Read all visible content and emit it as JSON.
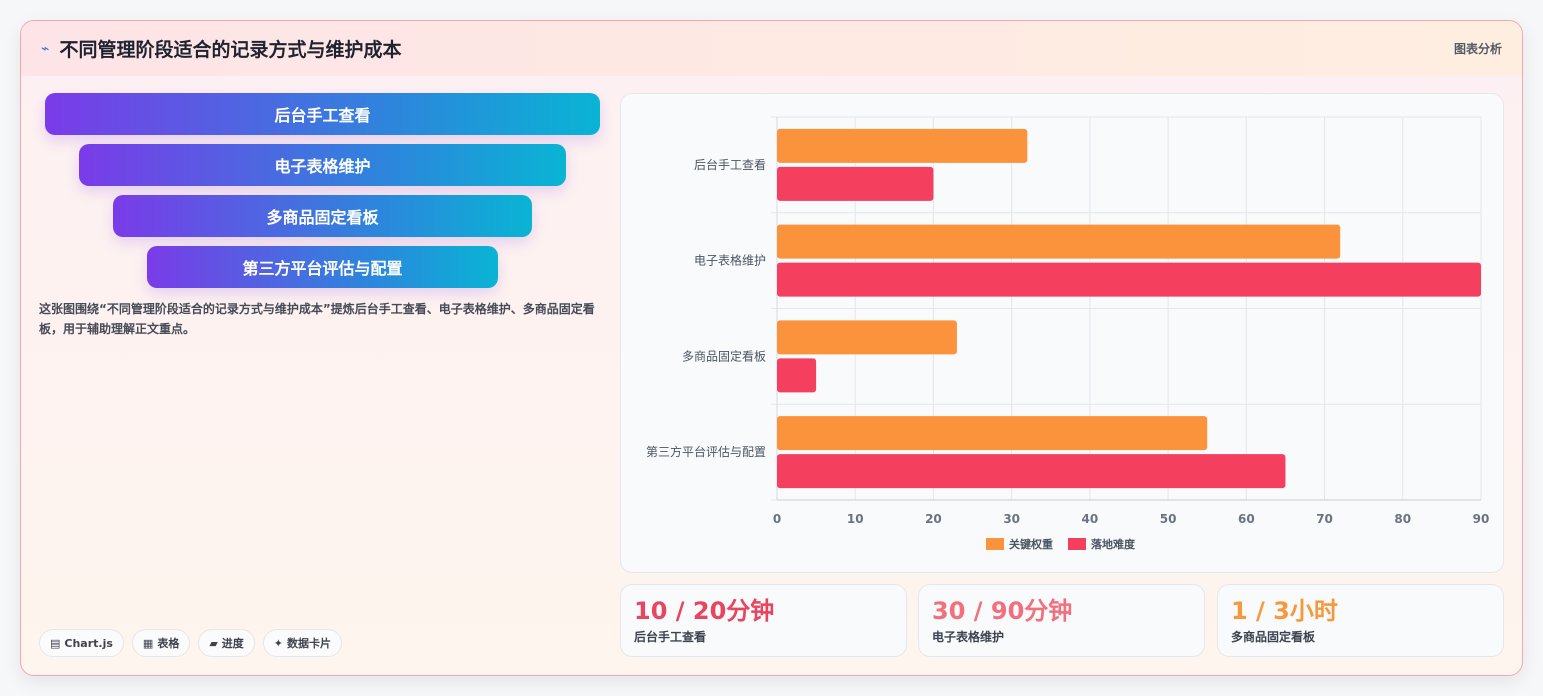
{
  "header": {
    "icon": "spark-icon",
    "title": "不同管理阶段适合的记录方式与维护成本",
    "tag": "图表分析"
  },
  "funnel": {
    "steps": [
      "后台手工查看",
      "电子表格维护",
      "多商品固定看板",
      "第三方平台评估与配置"
    ]
  },
  "description": "这张图围绕“不同管理阶段适合的记录方式与维护成本”提炼后台手工查看、电子表格维护、多商品固定看板，用于辅助理解正文重点。",
  "chips": [
    {
      "icon": "chart-icon",
      "label": "Chart.js"
    },
    {
      "icon": "table-icon",
      "label": "表格"
    },
    {
      "icon": "progress-icon",
      "label": "进度"
    },
    {
      "icon": "sparkle-icon",
      "label": "数据卡片"
    }
  ],
  "chart_data": {
    "type": "bar",
    "orientation": "horizontal",
    "categories": [
      "后台手工查看",
      "电子表格维护",
      "多商品固定看板",
      "第三方平台评估与配置"
    ],
    "series": [
      {
        "name": "关键权重",
        "color": "#fb923c",
        "values": [
          32,
          72,
          23,
          55
        ]
      },
      {
        "name": "落地难度",
        "color": "#f43f5e",
        "values": [
          20,
          90,
          5,
          65
        ]
      }
    ],
    "xlim": [
      0,
      90
    ],
    "xticks": [
      0,
      10,
      20,
      30,
      40,
      50,
      60,
      70,
      80,
      90
    ],
    "grid": true,
    "legend": "bottom"
  },
  "kpis": [
    {
      "value": "10 / 20分钟",
      "label": "后台手工查看",
      "color": "#e8455f"
    },
    {
      "value": "30 / 90分钟",
      "label": "电子表格维护",
      "color": "#f2707e"
    },
    {
      "value": "1 / 3小时",
      "label": "多商品固定看板",
      "color": "#f59a3c"
    }
  ]
}
